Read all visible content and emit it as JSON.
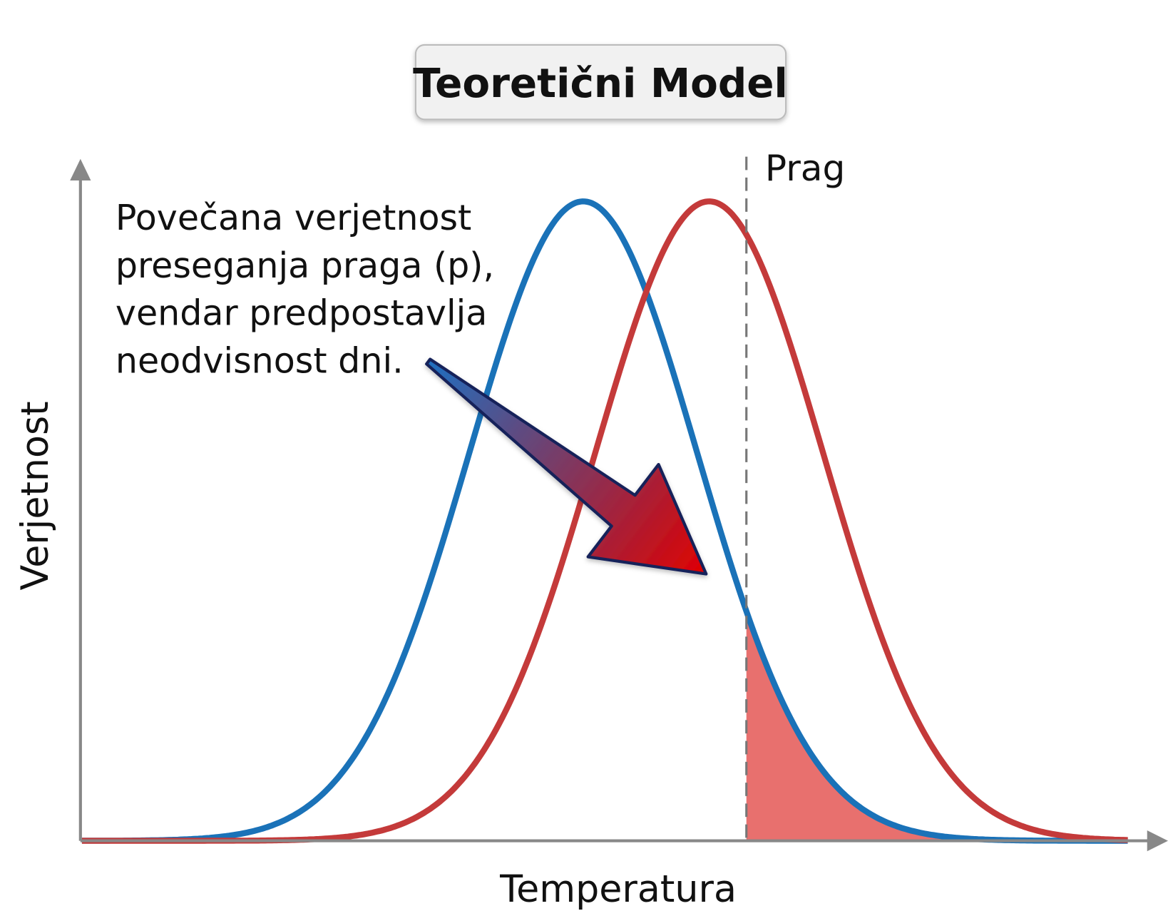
{
  "title": "Teoretični Model",
  "threshold_label": "Prag",
  "annotation": {
    "lines": [
      "Povečana verjetnost",
      "preseganja praga (p),",
      "vendar predpostavlja",
      "neodvisnost dni."
    ]
  },
  "x_axis_label": "Temperatura",
  "y_axis_label": "Verjetnost"
}
